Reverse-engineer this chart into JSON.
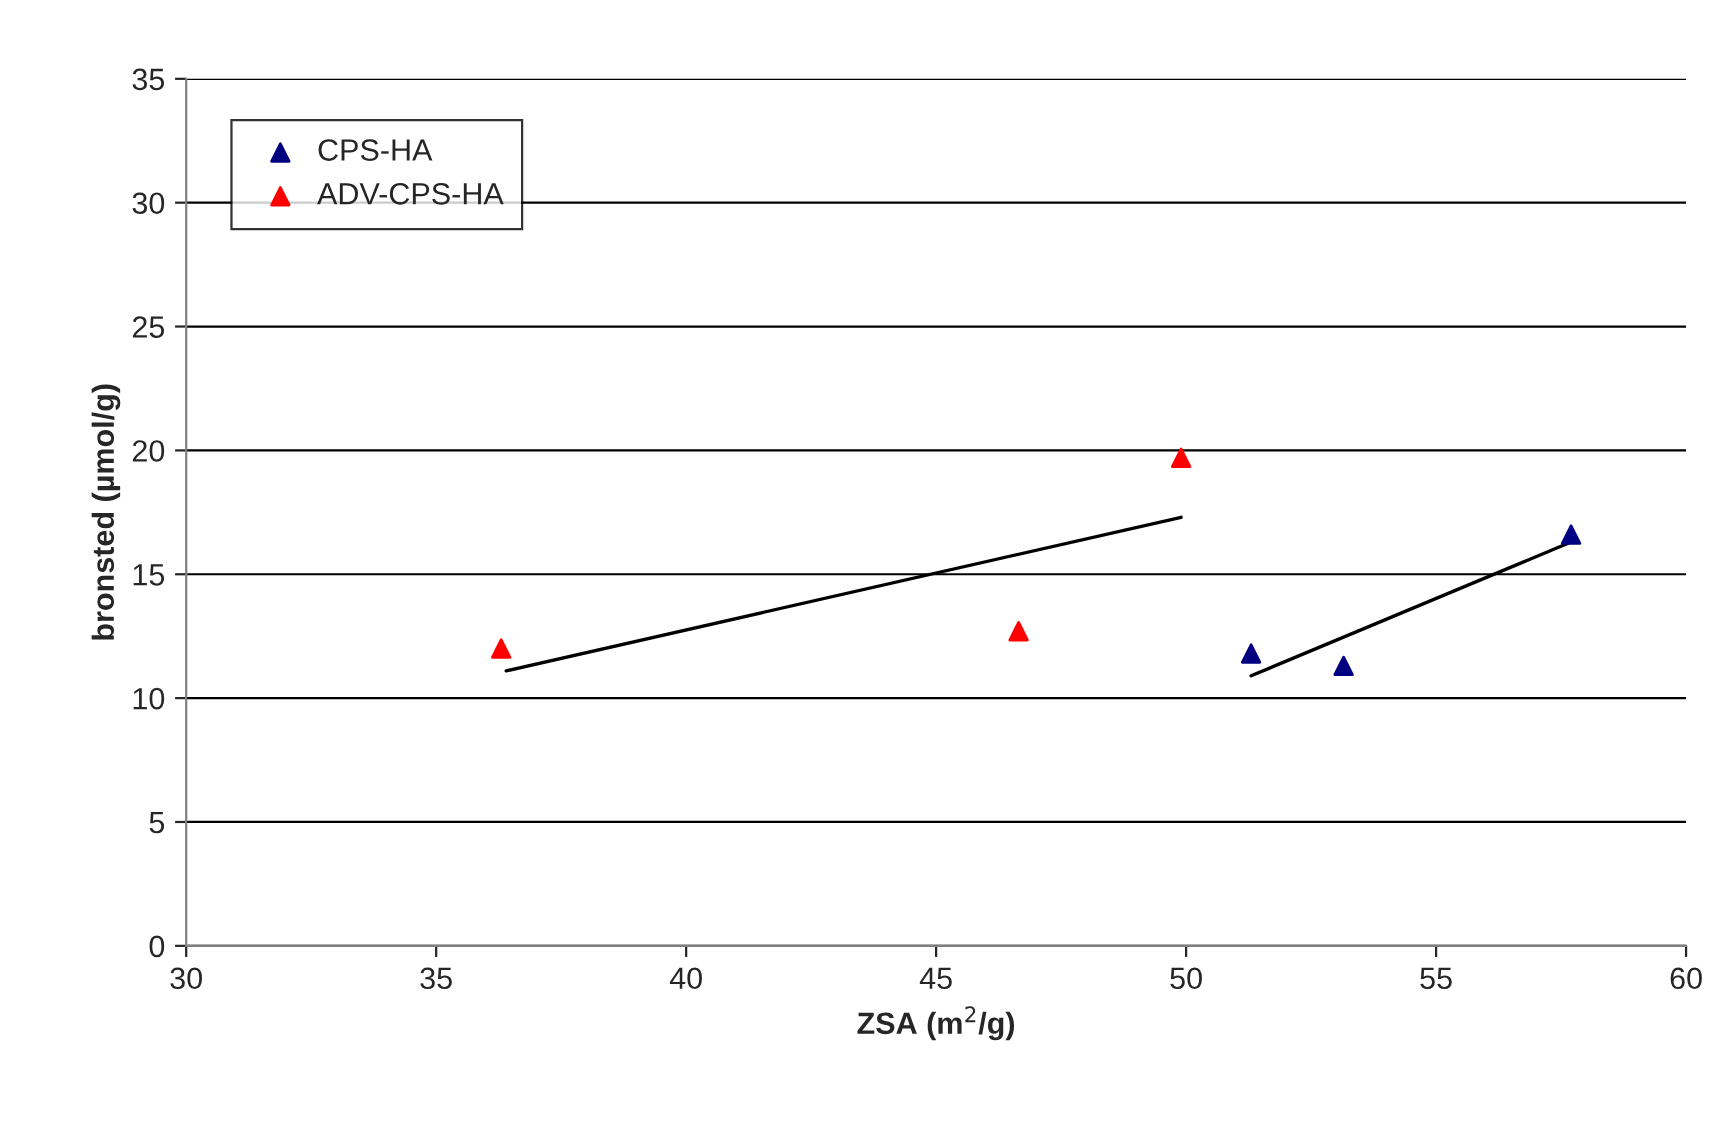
{
  "chart_data": {
    "type": "scatter",
    "xlabel": "ZSA (m$^{2}$/g)",
    "ylabel": "bronsted (µmol/g)",
    "xlim": [
      30,
      60
    ],
    "xticks": [
      30,
      35,
      40,
      45,
      50,
      55,
      60
    ],
    "ylim": [
      0,
      35
    ],
    "yticks": [
      0,
      5,
      10,
      15,
      20,
      25,
      30,
      35
    ],
    "grid": "y",
    "legend": "top left",
    "marker": "triangle",
    "series": [
      {
        "name": "CPS-HA",
        "color": "#000080",
        "x": [
          51.3,
          53.15,
          57.7
        ],
        "values": [
          11.8,
          11.3,
          16.6
        ]
      },
      {
        "name": "ADV-CPS-HA",
        "color": "#ff0000",
        "x": [
          36.3,
          46.65,
          49.9
        ],
        "values": [
          12.0,
          12.7,
          19.7
        ]
      },
      {
        "type": "line",
        "color": "#000000",
        "marker": "none",
        "x": [
          36.4,
          49.9
        ],
        "values": [
          11.1,
          17.3
        ]
      },
      {
        "type": "line",
        "color": "#000000",
        "marker": "none",
        "x": [
          51.3,
          57.7
        ],
        "values": [
          10.9,
          16.3
        ]
      }
    ]
  }
}
